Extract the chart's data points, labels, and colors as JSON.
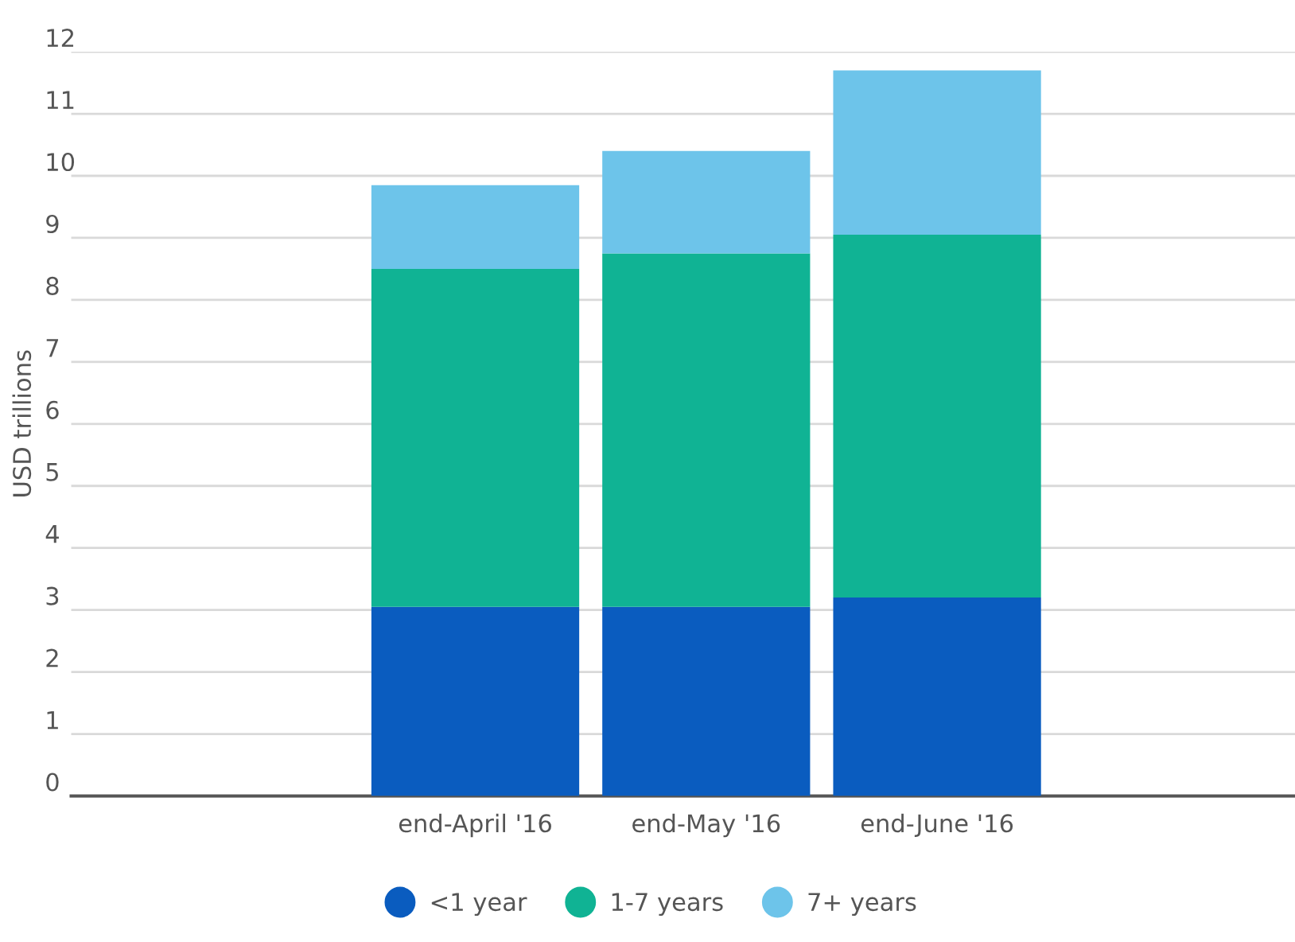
{
  "chart_data": {
    "type": "bar",
    "stacked": true,
    "ylabel": "USD trillions",
    "categories": [
      "end-April '16",
      "end-May '16",
      "end-June '16"
    ],
    "series": [
      {
        "name": "<1 year",
        "color": "#0a5cbf",
        "values": [
          3.05,
          3.05,
          3.2
        ]
      },
      {
        "name": "1-7 years",
        "color": "#10b394",
        "values": [
          5.45,
          5.7,
          5.85
        ]
      },
      {
        "name": "7+ years",
        "color": "#6dc4ea",
        "values": [
          1.35,
          1.65,
          2.65
        ]
      }
    ],
    "ylim": [
      0,
      12
    ],
    "yticks": [
      0,
      1,
      2,
      3,
      4,
      5,
      6,
      7,
      8,
      9,
      10,
      11,
      12
    ],
    "grid": "y",
    "legend": "bottom",
    "marker": "circle"
  }
}
